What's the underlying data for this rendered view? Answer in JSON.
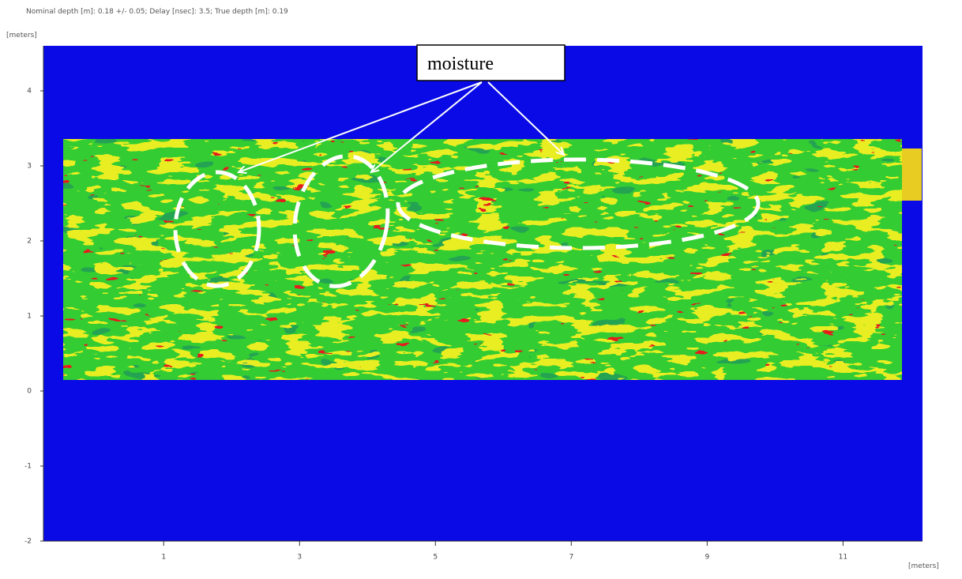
{
  "chart_data": {
    "type": "heatmap",
    "title": "Nominal depth [m]: 0.18 +/- 0.05;  Delay [nsec]: 3.5;  True depth [m]: 0.19",
    "xlabel": "[meters]",
    "ylabel": "[meters]",
    "xlim": [
      -0.77,
      12.17
    ],
    "ylim": [
      -2,
      4.6
    ],
    "xticks": [
      1,
      3,
      5,
      7,
      9,
      11
    ],
    "yticks": [
      -2,
      -1,
      0,
      1,
      2,
      3,
      4
    ],
    "annotation": "moisture"
  }
}
